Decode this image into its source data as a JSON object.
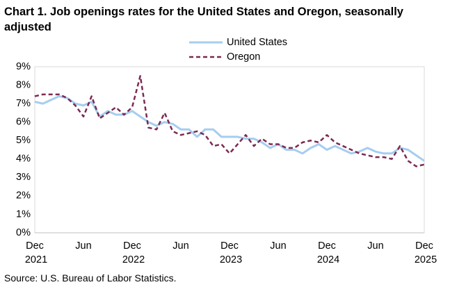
{
  "chart_data": {
    "type": "line",
    "title": "Chart 1. Job openings rates for the United States and Oregon, seasonally adjusted",
    "source": "Source: U.S. Bureau of Labor Statistics.",
    "categories": [
      "Dec 2021",
      null,
      null,
      null,
      null,
      null,
      "Jun",
      null,
      null,
      null,
      null,
      null,
      "Dec 2022",
      null,
      null,
      null,
      null,
      null,
      "Jun",
      null,
      null,
      null,
      null,
      null,
      "Dec 2023",
      null,
      null,
      null,
      null,
      null,
      "Jun",
      null,
      null,
      null,
      null,
      null,
      "Dec 2024",
      null,
      null,
      null,
      null,
      null,
      "Jun",
      null,
      null,
      null,
      null,
      null,
      "Dec 2025"
    ],
    "series": [
      {
        "name": "United States",
        "color": "#a5cdf0",
        "dashed": false,
        "values": [
          7.1,
          7.0,
          7.2,
          7.4,
          7.3,
          7.0,
          6.9,
          7.1,
          6.3,
          6.6,
          6.4,
          6.4,
          6.6,
          6.3,
          6.0,
          5.8,
          6.0,
          5.9,
          5.6,
          5.6,
          5.2,
          5.6,
          5.6,
          5.2,
          5.2,
          5.2,
          5.1,
          5.1,
          4.9,
          4.6,
          4.8,
          4.5,
          4.5,
          4.3,
          4.6,
          4.8,
          4.5,
          4.7,
          4.5,
          4.3,
          4.4,
          4.6,
          4.4,
          4.3,
          4.3,
          4.6,
          4.5,
          4.2,
          3.9
        ]
      },
      {
        "name": "Oregon",
        "color": "#7b2a52",
        "dashed": true,
        "values": [
          7.4,
          7.5,
          7.5,
          7.5,
          7.3,
          6.9,
          6.3,
          7.4,
          6.2,
          6.5,
          6.8,
          6.4,
          6.8,
          8.5,
          5.7,
          5.6,
          6.5,
          5.5,
          5.3,
          5.4,
          5.5,
          5.3,
          4.7,
          4.8,
          4.3,
          4.8,
          5.3,
          4.7,
          5.1,
          4.8,
          4.8,
          4.6,
          4.6,
          4.9,
          5.0,
          4.9,
          5.3,
          4.9,
          4.7,
          4.5,
          4.3,
          4.2,
          4.1,
          4.1,
          4.0,
          4.7,
          3.9,
          3.6,
          3.7
        ]
      }
    ],
    "ylim": [
      0,
      9
    ],
    "yticks": [
      {
        "value": 0,
        "label": "0%"
      },
      {
        "value": 1,
        "label": "1%"
      },
      {
        "value": 2,
        "label": "2%"
      },
      {
        "value": 3,
        "label": "3%"
      },
      {
        "value": 4,
        "label": "4%"
      },
      {
        "value": 5,
        "label": "5%"
      },
      {
        "value": 6,
        "label": "6%"
      },
      {
        "value": 7,
        "label": "7%"
      },
      {
        "value": 8,
        "label": "8%"
      },
      {
        "value": 9,
        "label": "9%"
      }
    ],
    "grid": false
  }
}
